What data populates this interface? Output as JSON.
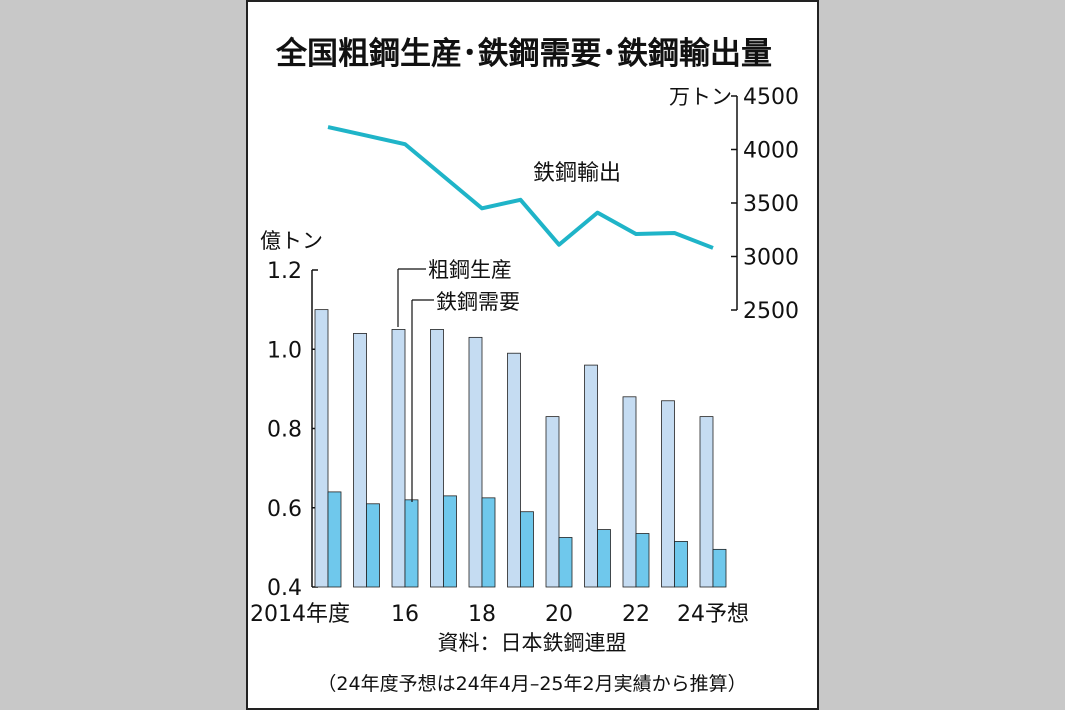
{
  "chart_data": {
    "type": "bar",
    "title": "全国粗鋼生産･鉄鋼需要･鉄鋼輸出量",
    "categories": [
      "2014",
      "2015",
      "2016",
      "2017",
      "2018",
      "2019",
      "2020",
      "2021",
      "2022",
      "2023",
      "2024"
    ],
    "x_tick_labels": [
      "2014年度",
      "",
      "16",
      "",
      "18",
      "",
      "20",
      "",
      "22",
      "",
      "24予想"
    ],
    "left_axis": {
      "unit": "億トン",
      "ylim": [
        0.4,
        1.2
      ],
      "ticks": [
        "0.4",
        "0.6",
        "0.8",
        "1.0",
        "1.2"
      ]
    },
    "right_axis": {
      "unit": "万トン",
      "ylim": [
        2500,
        4500
      ],
      "ticks": [
        "2500",
        "3000",
        "3500",
        "4000",
        "4500"
      ]
    },
    "series": [
      {
        "name": "粗鋼生産",
        "type": "bar",
        "axis": "left",
        "color": "#c5dcf2",
        "values": [
          1.1,
          1.04,
          1.05,
          1.05,
          1.03,
          0.99,
          0.83,
          0.96,
          0.88,
          0.87,
          0.83
        ]
      },
      {
        "name": "鉄鋼需要",
        "type": "bar",
        "axis": "left",
        "color": "#6fc8ec",
        "values": [
          0.64,
          0.61,
          0.62,
          0.63,
          0.625,
          0.59,
          0.525,
          0.545,
          0.535,
          0.515,
          0.495
        ]
      },
      {
        "name": "鉄鋼輸出",
        "type": "line",
        "axis": "right",
        "color": "#1fb4c8",
        "values": [
          4210,
          4130,
          4050,
          3750,
          3450,
          3530,
          3110,
          3410,
          3210,
          3220,
          3080
        ]
      }
    ],
    "source": "資料：日本鉄鋼連盟",
    "note": "（24年度予想は24年4月–25年2月実績から推算）",
    "grid": false
  }
}
